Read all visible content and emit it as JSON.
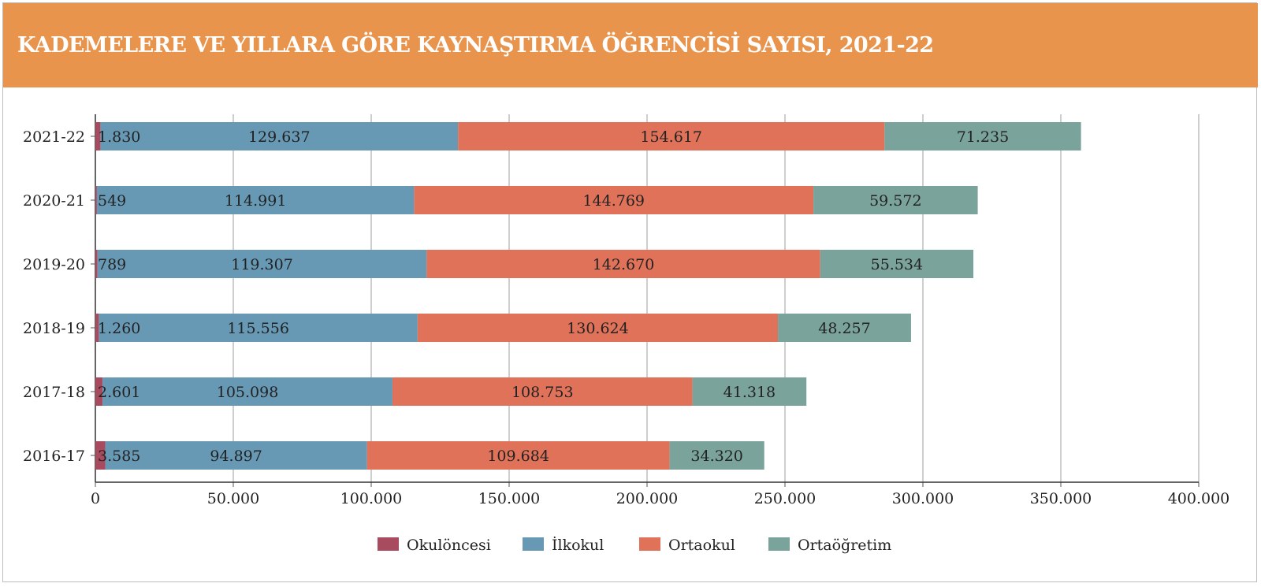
{
  "colors": {
    "header": "#e8944c",
    "okuloncesi": "#a84b5e",
    "ilkokul": "#6799b5",
    "ortaokul": "#e0725a",
    "ortaogretim": "#7aa39b"
  },
  "chart_data": {
    "type": "bar",
    "orientation": "horizontal",
    "stacked": true,
    "title": "KADEMELERE VE YILLARA GÖRE KAYNAŞTIRMA ÖĞRENCİSİ SAYISI, 2021-22",
    "categories": [
      "2021-22",
      "2020-21",
      "2019-20",
      "2018-19",
      "2017-18",
      "2016-17"
    ],
    "series": [
      {
        "name": "Okulöncesi",
        "values": [
          1830,
          549,
          789,
          1260,
          2601,
          3585
        ],
        "labels": [
          "1.830",
          "549",
          "789",
          "1.260",
          "2.601",
          "3.585"
        ]
      },
      {
        "name": "İlkokul",
        "values": [
          129637,
          114991,
          119307,
          115556,
          105098,
          94897
        ],
        "labels": [
          "129.637",
          "114.991",
          "119.307",
          "115.556",
          "105.098",
          "94.897"
        ]
      },
      {
        "name": "Ortaokul",
        "values": [
          154617,
          144769,
          142670,
          130624,
          108753,
          109684
        ],
        "labels": [
          "154.617",
          "144.769",
          "142.670",
          "130.624",
          "108.753",
          "109.684"
        ]
      },
      {
        "name": "Ortaöğretim",
        "values": [
          71235,
          59572,
          55534,
          48257,
          41318,
          34320
        ],
        "labels": [
          "71.235",
          "59.572",
          "55.534",
          "48.257",
          "41.318",
          "34.320"
        ]
      }
    ],
    "xlim": [
      0,
      400000
    ],
    "x_ticks": [
      0,
      50000,
      100000,
      150000,
      200000,
      250000,
      300000,
      350000,
      400000
    ],
    "x_tick_labels": [
      "0",
      "50.000",
      "100.000",
      "150.000",
      "200.000",
      "250.000",
      "300.000",
      "350.000",
      "400.000"
    ],
    "grid": true,
    "legend_position": "bottom"
  }
}
